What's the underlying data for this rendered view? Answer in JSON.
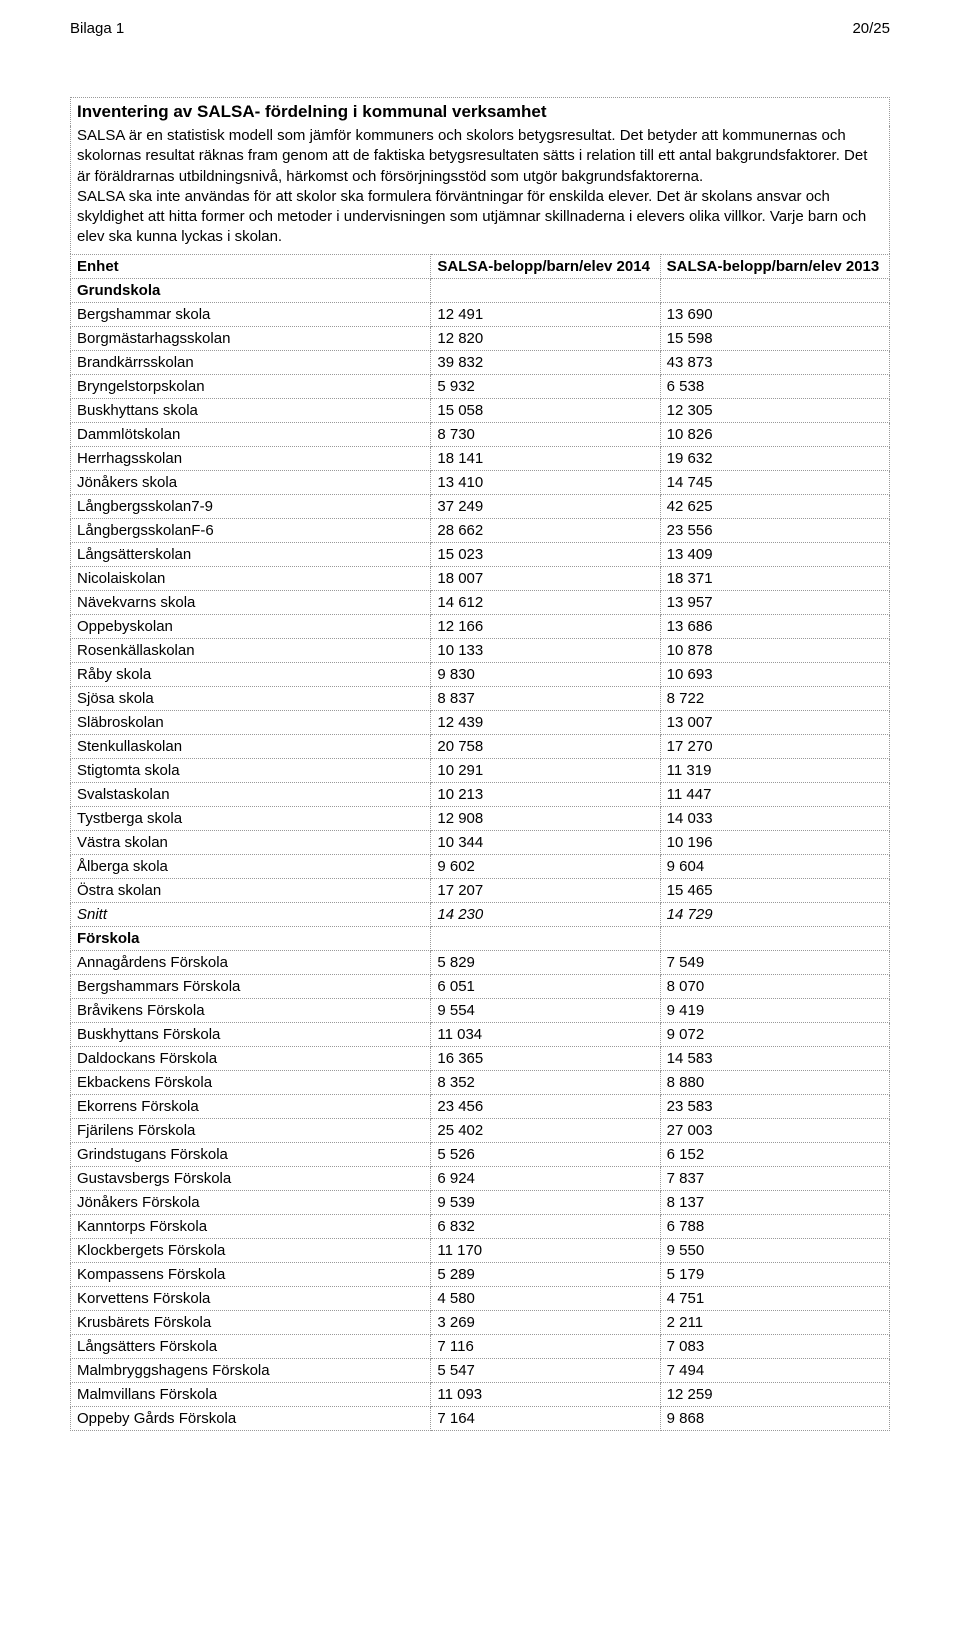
{
  "header": {
    "left": "Bilaga 1",
    "right": "20/25"
  },
  "title": "Inventering av SALSA- fördelning i kommunal verksamhet",
  "intro": "SALSA är en statistisk modell som jämför kommuners och skolors betygsresultat. Det betyder att kommunernas och skolornas resultat räknas fram genom att de faktiska betygsresultaten sätts i relation till ett antal bakgrundsfaktorer. Det är föräldrarnas utbildningsnivå, härkomst och försörjningsstöd som utgör bakgrundsfaktorerna.\nSALSA ska inte användas för att skolor ska formulera förväntningar för enskilda elever. Det är skolans ansvar och skyldighet att hitta former och metoder i undervisningen som utjämnar skillnaderna i elevers olika villkor. Varje barn och elev ska kunna lyckas i skolan.",
  "columns": {
    "enhet": "Enhet",
    "c2014": "SALSA-belopp/barn/elev 2014",
    "c2013": "SALSA-belopp/barn/elev 2013"
  },
  "sections": [
    {
      "label": "Grundskola",
      "rows": [
        {
          "name": "Bergshammar skola",
          "v2014": "12 491",
          "v2013": "13 690"
        },
        {
          "name": "Borgmästarhagsskolan",
          "v2014": "12 820",
          "v2013": "15 598"
        },
        {
          "name": "Brandkärrsskolan",
          "v2014": "39 832",
          "v2013": "43 873"
        },
        {
          "name": "Bryngelstorpskolan",
          "v2014": "5 932",
          "v2013": "6 538"
        },
        {
          "name": "Buskhyttans skola",
          "v2014": "15 058",
          "v2013": "12 305"
        },
        {
          "name": "Dammlötskolan",
          "v2014": "8 730",
          "v2013": "10 826"
        },
        {
          "name": "Herrhagsskolan",
          "v2014": "18 141",
          "v2013": "19 632"
        },
        {
          "name": "Jönåkers skola",
          "v2014": "13 410",
          "v2013": "14 745"
        },
        {
          "name": "Långbergsskolan7-9",
          "v2014": "37 249",
          "v2013": "42 625"
        },
        {
          "name": "LångbergsskolanF-6",
          "v2014": "28 662",
          "v2013": "23 556"
        },
        {
          "name": "Långsätterskolan",
          "v2014": "15 023",
          "v2013": "13 409"
        },
        {
          "name": "Nicolaiskolan",
          "v2014": "18 007",
          "v2013": "18 371"
        },
        {
          "name": "Nävekvarns skola",
          "v2014": "14 612",
          "v2013": "13 957"
        },
        {
          "name": "Oppebyskolan",
          "v2014": "12 166",
          "v2013": "13 686"
        },
        {
          "name": "Rosenkällaskolan",
          "v2014": "10 133",
          "v2013": "10 878"
        },
        {
          "name": "Råby skola",
          "v2014": "9 830",
          "v2013": "10 693"
        },
        {
          "name": "Sjösa skola",
          "v2014": "8 837",
          "v2013": "8 722"
        },
        {
          "name": "Släbroskolan",
          "v2014": "12 439",
          "v2013": "13 007"
        },
        {
          "name": "Stenkullaskolan",
          "v2014": "20 758",
          "v2013": "17 270"
        },
        {
          "name": "Stigtomta skola",
          "v2014": "10 291",
          "v2013": "11 319"
        },
        {
          "name": "Svalstaskolan",
          "v2014": "10 213",
          "v2013": "11 447"
        },
        {
          "name": "Tystberga skola",
          "v2014": "12 908",
          "v2013": "14 033"
        },
        {
          "name": "Västra skolan",
          "v2014": "10 344",
          "v2013": "10 196"
        },
        {
          "name": "Ålberga skola",
          "v2014": "9 602",
          "v2013": "9 604"
        },
        {
          "name": "Östra skolan",
          "v2014": "17 207",
          "v2013": "15 465"
        },
        {
          "name": "Snitt",
          "v2014": "14 230",
          "v2013": "14 729",
          "italic": true
        }
      ]
    },
    {
      "label": "Förskola",
      "rows": [
        {
          "name": "Annagårdens Förskola",
          "v2014": "5 829",
          "v2013": "7 549"
        },
        {
          "name": "Bergshammars Förskola",
          "v2014": "6 051",
          "v2013": "8 070"
        },
        {
          "name": "Bråvikens Förskola",
          "v2014": "9 554",
          "v2013": "9 419"
        },
        {
          "name": "Buskhyttans Förskola",
          "v2014": "11 034",
          "v2013": "9 072"
        },
        {
          "name": "Daldockans Förskola",
          "v2014": "16 365",
          "v2013": "14 583"
        },
        {
          "name": "Ekbackens Förskola",
          "v2014": "8 352",
          "v2013": "8 880"
        },
        {
          "name": "Ekorrens Förskola",
          "v2014": "23 456",
          "v2013": "23 583"
        },
        {
          "name": "Fjärilens Förskola",
          "v2014": "25 402",
          "v2013": "27 003"
        },
        {
          "name": "Grindstugans Förskola",
          "v2014": "5 526",
          "v2013": "6 152"
        },
        {
          "name": "Gustavsbergs Förskola",
          "v2014": "6 924",
          "v2013": "7 837"
        },
        {
          "name": "Jönåkers Förskola",
          "v2014": "9 539",
          "v2013": "8 137"
        },
        {
          "name": "Kanntorps Förskola",
          "v2014": "6 832",
          "v2013": "6 788"
        },
        {
          "name": "Klockbergets Förskola",
          "v2014": "11 170",
          "v2013": "9 550"
        },
        {
          "name": "Kompassens Förskola",
          "v2014": "5 289",
          "v2013": "5 179"
        },
        {
          "name": "Korvettens Förskola",
          "v2014": "4 580",
          "v2013": "4 751"
        },
        {
          "name": "Krusbärets Förskola",
          "v2014": "3 269",
          "v2013": "2 211"
        },
        {
          "name": "Långsätters Förskola",
          "v2014": "7 116",
          "v2013": "7 083"
        },
        {
          "name": "Malmbryggshagens Förskola",
          "v2014": "5 547",
          "v2013": "7 494"
        },
        {
          "name": "Malmvillans Förskola",
          "v2014": "11 093",
          "v2013": "12 259"
        },
        {
          "name": "Oppeby Gårds Förskola",
          "v2014": "7 164",
          "v2013": "9 868"
        }
      ]
    }
  ]
}
